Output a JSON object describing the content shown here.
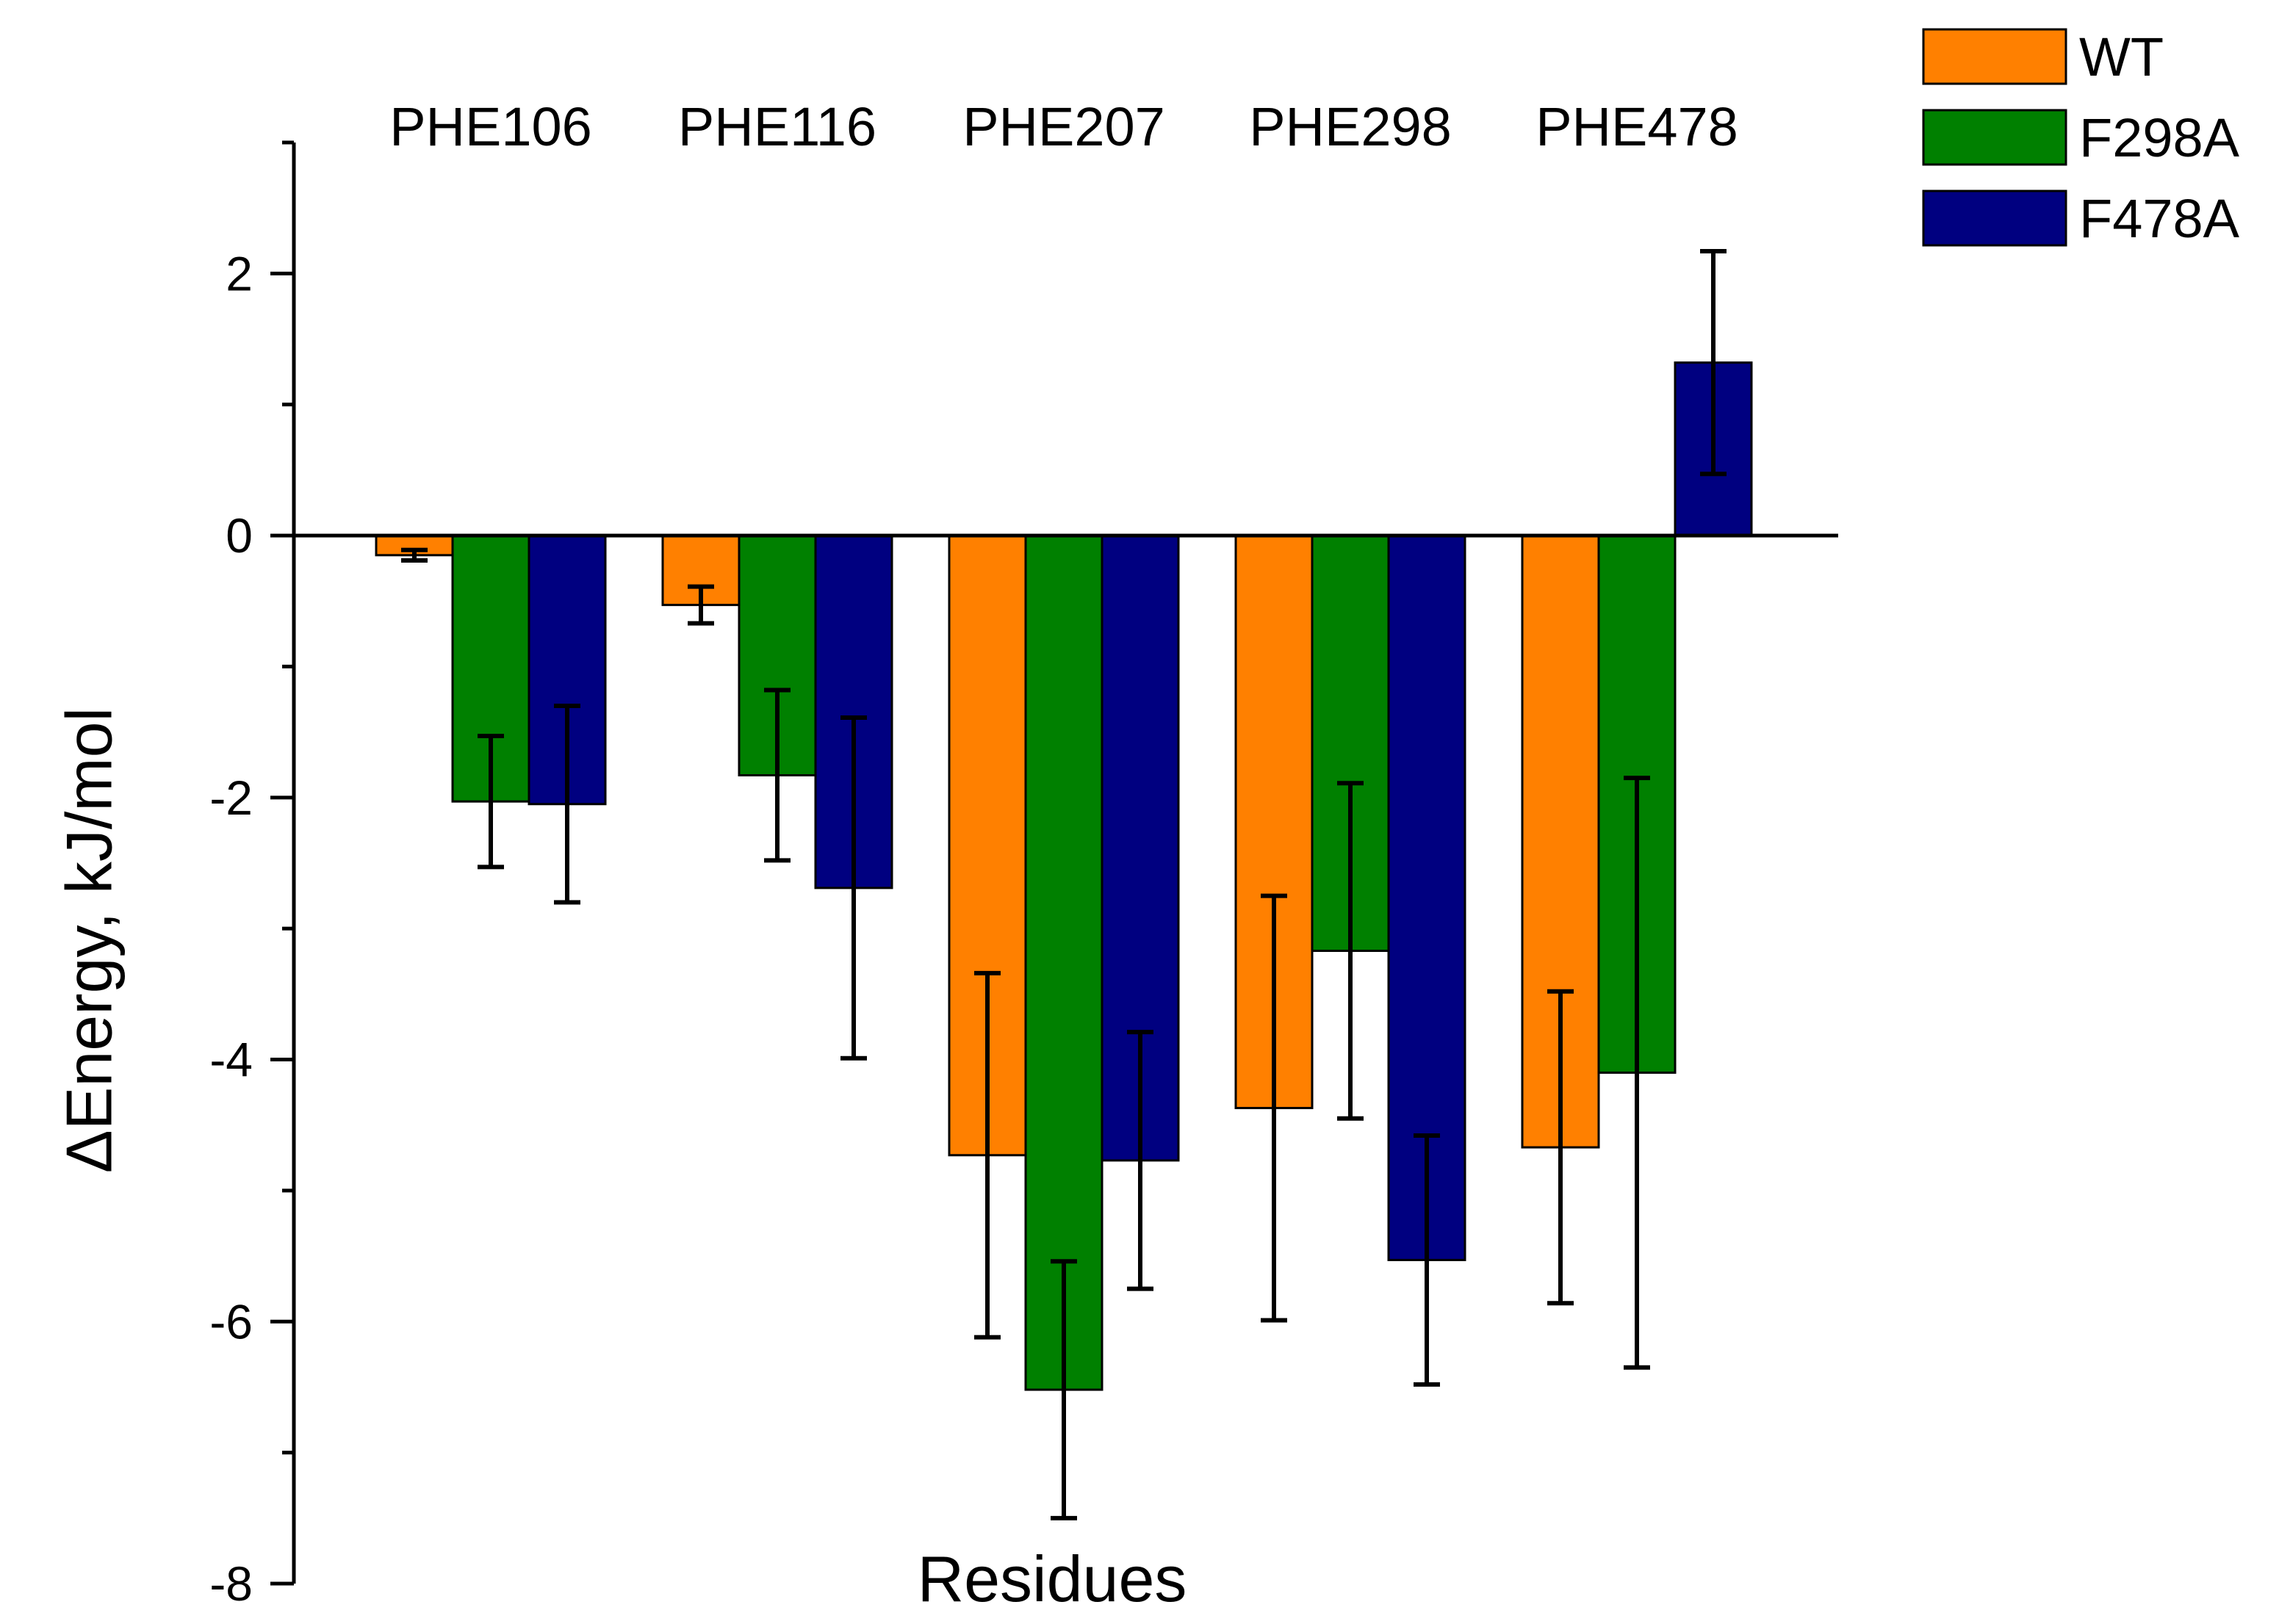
{
  "chart_data": {
    "type": "bar",
    "categories": [
      "PHE106",
      "PHE116",
      "PHE207",
      "PHE298",
      "PHE478"
    ],
    "series": [
      {
        "name": "WT",
        "color": "#FF8000",
        "values": [
          -0.15,
          -0.53,
          -4.73,
          -4.37,
          -4.67
        ],
        "errors": [
          0.04,
          0.14,
          1.39,
          1.62,
          1.19
        ]
      },
      {
        "name": "F298A",
        "color": "#008000",
        "values": [
          -2.03,
          -1.83,
          -6.52,
          -3.17,
          -4.1
        ],
        "errors": [
          0.5,
          0.65,
          0.98,
          1.28,
          2.25
        ]
      },
      {
        "name": "F478A",
        "color": "#000080",
        "values": [
          -2.05,
          -2.69,
          -4.77,
          -5.53,
          1.32
        ],
        "errors": [
          0.75,
          1.3,
          0.98,
          0.95,
          0.85
        ]
      }
    ],
    "xlabel": "Residues",
    "ylabel": "ΔEnergy, kJ/mol",
    "ylim": [
      -8,
      3
    ],
    "yticks": [
      -8,
      -6,
      -4,
      -2,
      0,
      2
    ],
    "ytick_labels": [
      "-8",
      "-6",
      "-4",
      "-2",
      "0",
      "2"
    ],
    "category_labels_position": "top",
    "legend": "top-right",
    "grid": false
  }
}
